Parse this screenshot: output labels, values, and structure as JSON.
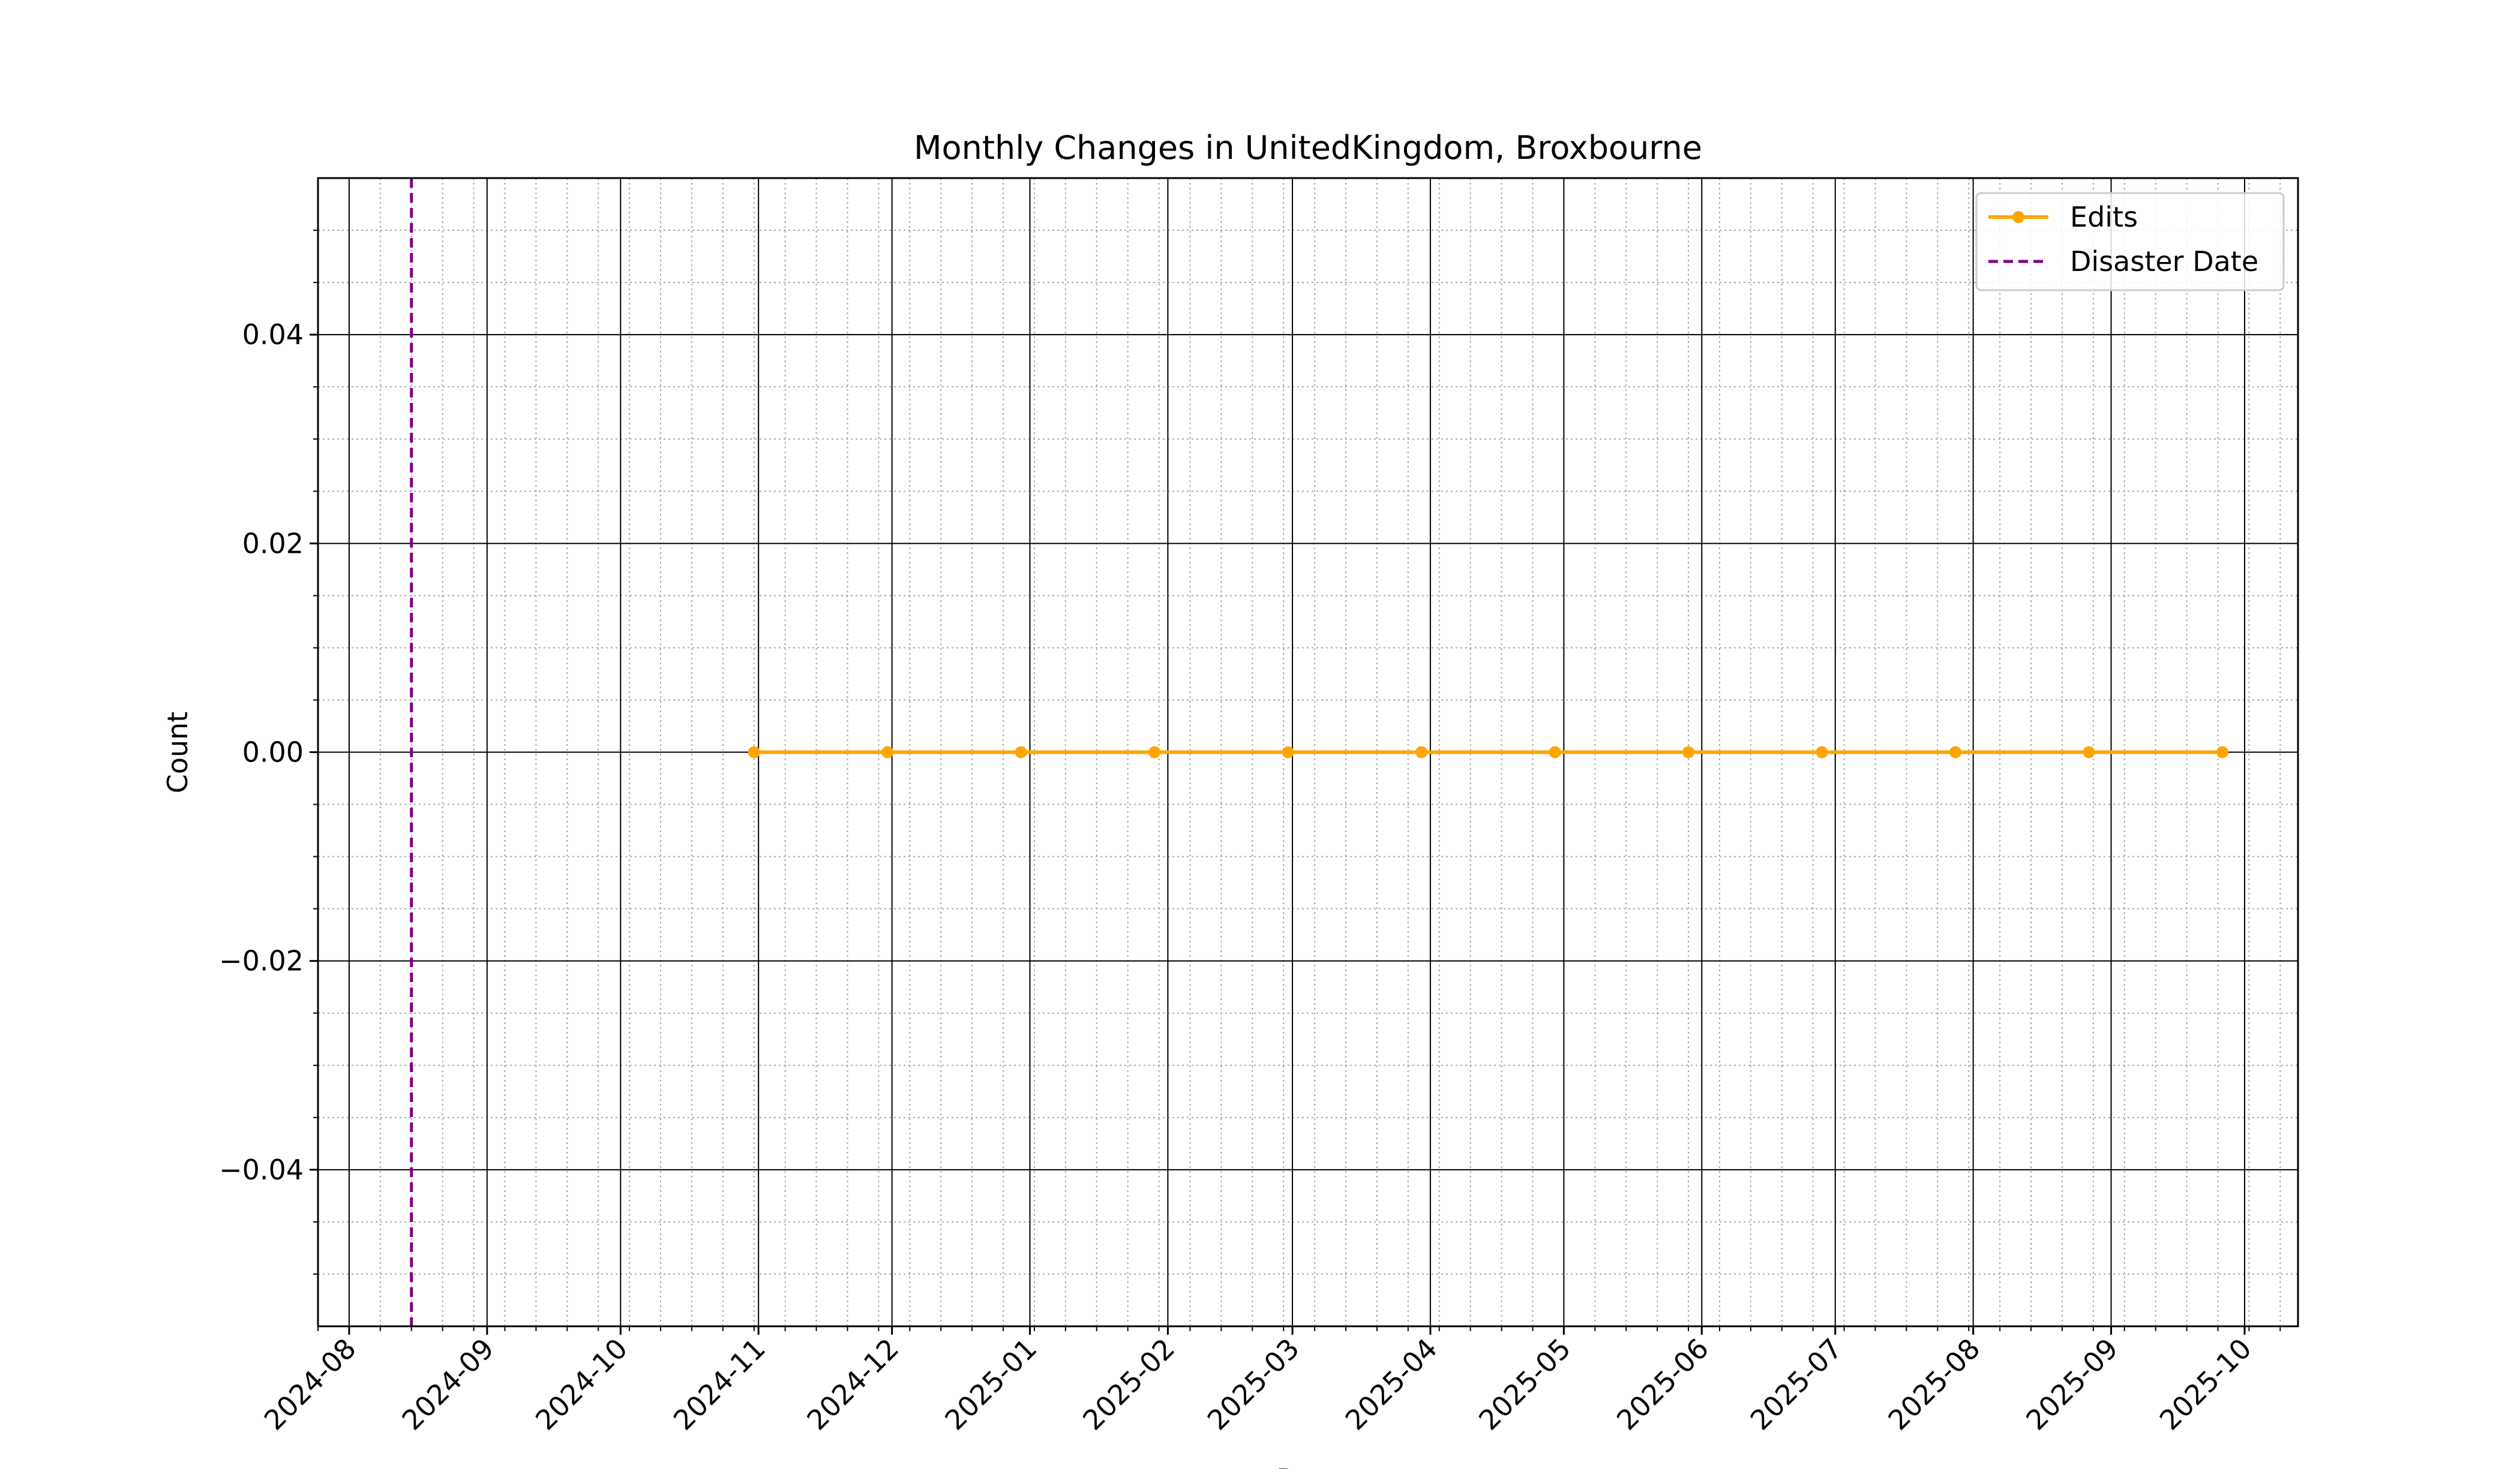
{
  "chart_data": {
    "type": "line",
    "title": "Monthly Changes in UnitedKingdom, Broxbourne",
    "xlabel": "Date",
    "ylabel": "Count",
    "x_range": [
      "2024-07-25",
      "2025-10-13"
    ],
    "ylim": [
      -0.055,
      0.055
    ],
    "x_ticks": [
      "2024-08",
      "2024-09",
      "2024-10",
      "2024-11",
      "2024-12",
      "2025-01",
      "2025-02",
      "2025-03",
      "2025-04",
      "2025-05",
      "2025-06",
      "2025-07",
      "2025-08",
      "2025-09",
      "2025-10"
    ],
    "y_ticks": [
      {
        "value": -0.04,
        "label": "−0.04"
      },
      {
        "value": -0.02,
        "label": "−0.02"
      },
      {
        "value": 0.0,
        "label": "0.00"
      },
      {
        "value": 0.02,
        "label": "0.02"
      },
      {
        "value": 0.04,
        "label": "0.04"
      }
    ],
    "grid": "major solid, minor dotted",
    "legend_position": "top-right",
    "series": [
      {
        "name": "Edits",
        "color": "#ffa500",
        "marker": "circle",
        "x": [
          "2024-10-31",
          "2024-11-30",
          "2024-12-30",
          "2025-01-29",
          "2025-02-28",
          "2025-03-30",
          "2025-04-29",
          "2025-05-29",
          "2025-06-28",
          "2025-07-28",
          "2025-08-27",
          "2025-09-26"
        ],
        "y": [
          0,
          0,
          0,
          0,
          0,
          0,
          0,
          0,
          0,
          0,
          0,
          0
        ]
      }
    ],
    "vlines": [
      {
        "name": "Disaster Date",
        "x": "2024-08-15",
        "color": "#800080",
        "style": "dashed"
      }
    ]
  }
}
